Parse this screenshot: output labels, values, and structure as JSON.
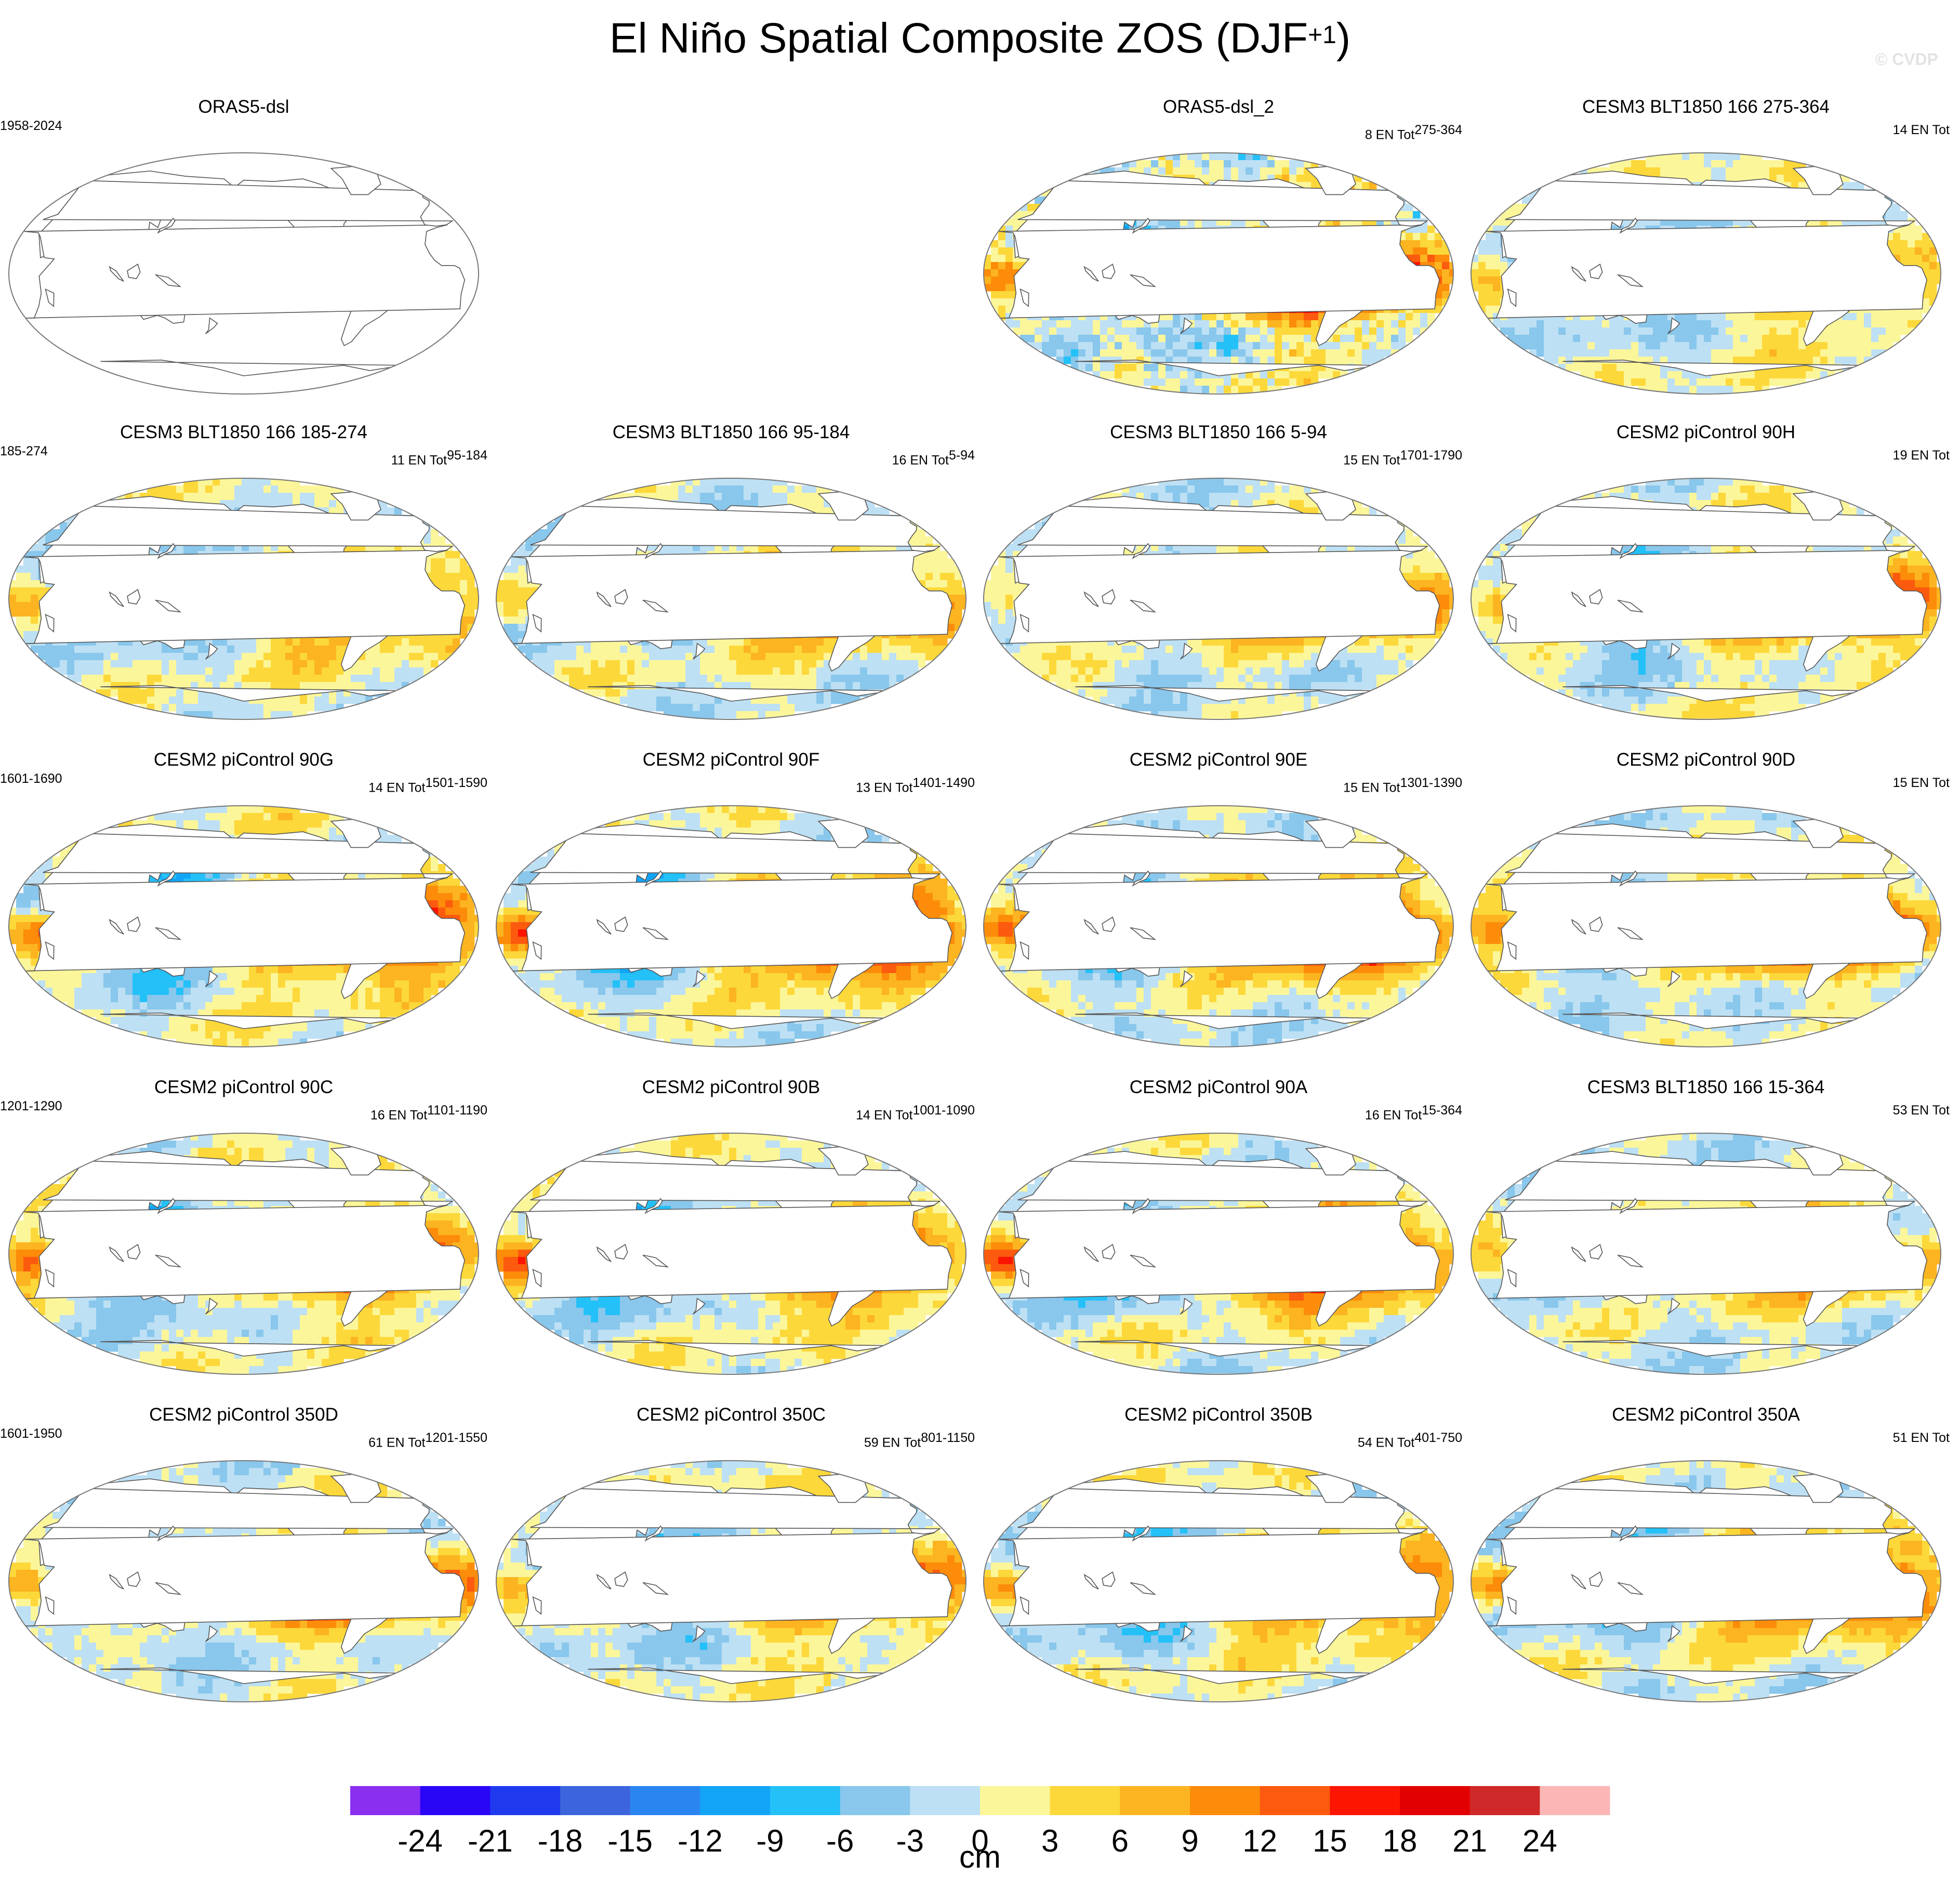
{
  "title": "El Niño Spatial Composite ZOS (DJF",
  "title_superscript": "+1",
  "title_suffix": ")",
  "watermark": "© CVDP",
  "colors": {
    "land": "#ffffff",
    "coast": "#555555",
    "frame": "#777777",
    "background": "#ffffff"
  },
  "chart_data": {
    "type": "heatmap",
    "projection": "Robinson (Pacific-centered)",
    "variable": "ZOS",
    "units": "cm",
    "colorbar": {
      "levels": [
        -24,
        -21,
        -18,
        -15,
        -12,
        -9,
        -6,
        -3,
        0,
        3,
        6,
        9,
        12,
        15,
        18,
        21,
        24
      ],
      "colors": [
        "#8a2ef0",
        "#2a06f7",
        "#1f3aee",
        "#3c64dc",
        "#2b85f0",
        "#12a4f7",
        "#24c0f8",
        "#89c7ec",
        "#bde0f4",
        "#fcf69a",
        "#fcd83a",
        "#fcb421",
        "#fc8c0a",
        "#fc5a0e",
        "#fc1500",
        "#e20000",
        "#cf2828",
        "#fcb6b6"
      ],
      "label": "cm",
      "placement": "bottom"
    },
    "panels": [
      {
        "title": "ORAS5-dsl",
        "years": "1958-2024",
        "count_prefix": "",
        "count_suffix": "",
        "amp": 0,
        "style": "empty"
      },
      {
        "title": "ORAS5-dsl_2",
        "years": "",
        "count_prefix": "8 EN Tot",
        "count_suffix": "275-364",
        "amp": 1.25,
        "style": "obs"
      },
      {
        "title": "CESM3 BLT1850 166 275-364",
        "years": "",
        "count_prefix": "14 EN Tot",
        "count_suffix": "",
        "amp": 0.55,
        "style": "model"
      },
      {
        "title": "CESM3 BLT1850 166 185-274",
        "years": "185-274",
        "count_prefix": "11 EN Tot",
        "count_suffix": "95-184",
        "amp": 0.6,
        "style": "model"
      },
      {
        "title": "CESM3 BLT1850 166 95-184",
        "years": "",
        "count_prefix": "16 EN Tot",
        "count_suffix": "5-94",
        "amp": 0.55,
        "style": "model"
      },
      {
        "title": "CESM3 BLT1850 166 5-94",
        "years": "",
        "count_prefix": "15 EN Tot",
        "count_suffix": "1701-1790",
        "amp": 0.6,
        "style": "model"
      },
      {
        "title": "CESM2 piControl 90H",
        "years": "",
        "count_prefix": "19 EN Tot",
        "count_suffix": "",
        "amp": 0.95,
        "style": "model"
      },
      {
        "title": "CESM2 piControl 90G",
        "years": "1601-1690",
        "count_prefix": "14 EN Tot",
        "count_suffix": "1501-1590",
        "amp": 1.1,
        "style": "model"
      },
      {
        "title": "CESM2 piControl 90F",
        "years": "",
        "count_prefix": "13 EN Tot",
        "count_suffix": "1401-1490",
        "amp": 1.15,
        "style": "model"
      },
      {
        "title": "CESM2 piControl 90E",
        "years": "",
        "count_prefix": "15 EN Tot",
        "count_suffix": "1301-1390",
        "amp": 1.0,
        "style": "model"
      },
      {
        "title": "CESM2 piControl 90D",
        "years": "",
        "count_prefix": "15 EN Tot",
        "count_suffix": "",
        "amp": 0.95,
        "style": "model"
      },
      {
        "title": "CESM2 piControl 90C",
        "years": "1201-1290",
        "count_prefix": "16 EN Tot",
        "count_suffix": "1101-1190",
        "amp": 1.05,
        "style": "model"
      },
      {
        "title": "CESM2 piControl 90B",
        "years": "",
        "count_prefix": "14 EN Tot",
        "count_suffix": "1001-1090",
        "amp": 1.05,
        "style": "model"
      },
      {
        "title": "CESM2 piControl 90A",
        "years": "",
        "count_prefix": "16 EN Tot",
        "count_suffix": "15-364",
        "amp": 1.1,
        "style": "model"
      },
      {
        "title": "CESM3 BLT1850 166 15-364",
        "years": "",
        "count_prefix": "53 EN Tot",
        "count_suffix": "",
        "amp": 0.55,
        "style": "model"
      },
      {
        "title": "CESM2 piControl 350D",
        "years": "1601-1950",
        "count_prefix": "61 EN Tot",
        "count_suffix": "1201-1550",
        "amp": 0.95,
        "style": "model"
      },
      {
        "title": "CESM2 piControl 350C",
        "years": "",
        "count_prefix": "59 EN Tot",
        "count_suffix": "801-1150",
        "amp": 0.95,
        "style": "model"
      },
      {
        "title": "CESM2 piControl 350B",
        "years": "",
        "count_prefix": "54 EN Tot",
        "count_suffix": "401-750",
        "amp": 0.95,
        "style": "model"
      },
      {
        "title": "CESM2 piControl 350A",
        "years": "",
        "count_prefix": "51 EN Tot",
        "count_suffix": "",
        "amp": 0.9,
        "style": "model"
      }
    ]
  }
}
